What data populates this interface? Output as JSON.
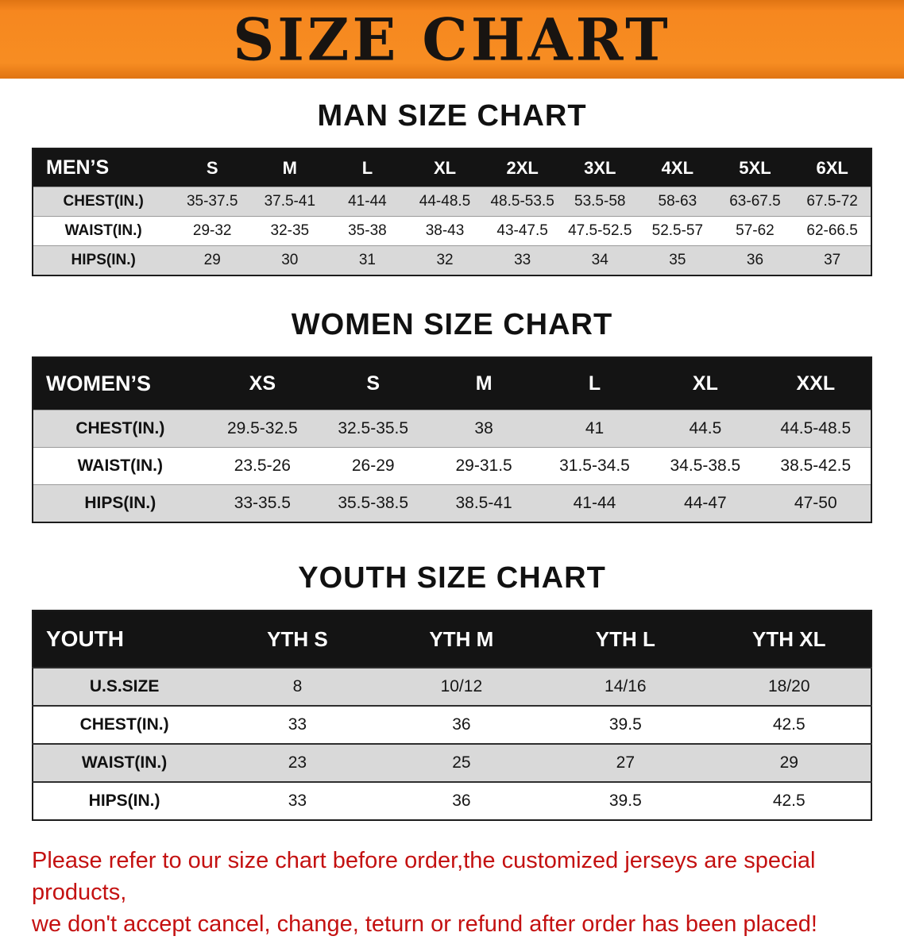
{
  "banner": {
    "title": "SIZE CHART"
  },
  "colors": {
    "banner_bg": "#f6871f",
    "table_header_bg": "#141414",
    "row_stripe": "#d9d9d9",
    "note_red": "#c41111"
  },
  "sections": [
    {
      "heading": "MAN SIZE CHART",
      "table": {
        "header": [
          "MEN’S",
          "S",
          "M",
          "L",
          "XL",
          "2XL",
          "3XL",
          "4XL",
          "5XL",
          "6XL"
        ],
        "rows": [
          [
            "CHEST(IN.)",
            "35-37.5",
            "37.5-41",
            "41-44",
            "44-48.5",
            "48.5-53.5",
            "53.5-58",
            "58-63",
            "63-67.5",
            "67.5-72"
          ],
          [
            "WAIST(IN.)",
            "29-32",
            "32-35",
            "35-38",
            "38-43",
            "43-47.5",
            "47.5-52.5",
            "52.5-57",
            "57-62",
            "62-66.5"
          ],
          [
            "HIPS(IN.)",
            "29",
            "30",
            "31",
            "32",
            "33",
            "34",
            "35",
            "36",
            "37"
          ]
        ]
      }
    },
    {
      "heading": "WOMEN SIZE CHART",
      "table": {
        "header": [
          "WOMEN’S",
          "XS",
          "S",
          "M",
          "L",
          "XL",
          "XXL"
        ],
        "rows": [
          [
            "CHEST(IN.)",
            "29.5-32.5",
            "32.5-35.5",
            "38",
            "41",
            "44.5",
            "44.5-48.5"
          ],
          [
            "WAIST(IN.)",
            "23.5-26",
            "26-29",
            "29-31.5",
            "31.5-34.5",
            "34.5-38.5",
            "38.5-42.5"
          ],
          [
            "HIPS(IN.)",
            "33-35.5",
            "35.5-38.5",
            "38.5-41",
            "41-44",
            "44-47",
            "47-50"
          ]
        ]
      }
    },
    {
      "heading": "YOUTH SIZE CHART",
      "table": {
        "header": [
          "YOUTH",
          "YTH S",
          "YTH M",
          "YTH L",
          "YTH XL"
        ],
        "rows": [
          [
            "U.S.SIZE",
            "8",
            "10/12",
            "14/16",
            "18/20"
          ],
          [
            "CHEST(IN.)",
            "33",
            "36",
            "39.5",
            "42.5"
          ],
          [
            "WAIST(IN.)",
            "23",
            "25",
            "27",
            "29"
          ],
          [
            "HIPS(IN.)",
            "33",
            "36",
            "39.5",
            "42.5"
          ]
        ]
      }
    }
  ],
  "note": {
    "line1": "Please refer to our size chart before order,the customized jerseys are special products,",
    "line2": "we don't accept cancel, change, teturn or refund after order has been placed!"
  }
}
